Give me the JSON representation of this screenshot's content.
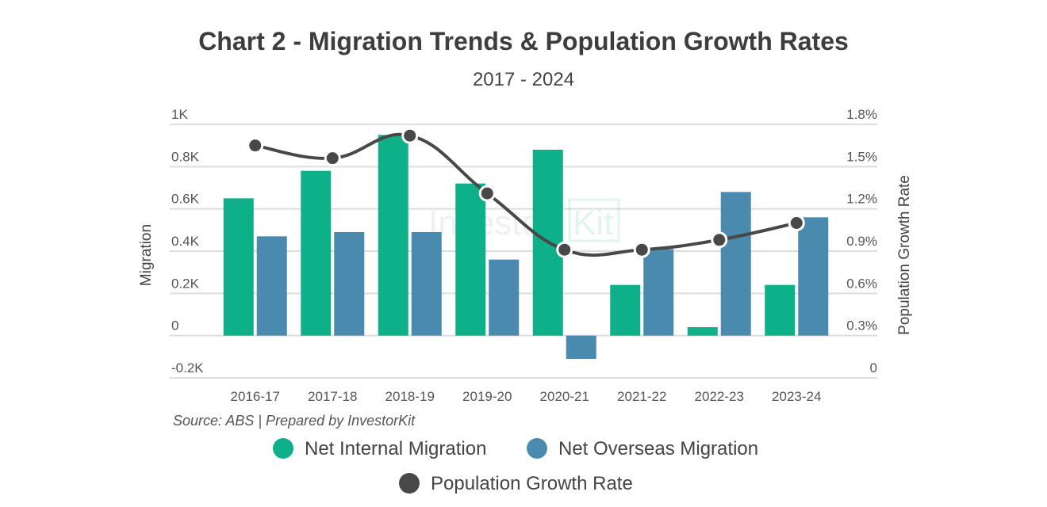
{
  "chart_data": {
    "type": "bar",
    "title": "Chart 2 - Migration Trends & Population Growth Rates",
    "subtitle": "2017 - 2024",
    "categories": [
      "2016-17",
      "2017-18",
      "2018-19",
      "2019-20",
      "2020-21",
      "2021-22",
      "2022-23",
      "2023-24"
    ],
    "series": [
      {
        "name": "Net Internal Migration",
        "type": "bar",
        "axis": "left",
        "color": "#0db088",
        "values": [
          0.65,
          0.78,
          0.95,
          0.72,
          0.88,
          0.24,
          0.04,
          0.24
        ]
      },
      {
        "name": "Net Overseas Migration",
        "type": "bar",
        "axis": "left",
        "color": "#4a8aae",
        "values": [
          0.47,
          0.49,
          0.49,
          0.36,
          -0.11,
          0.41,
          0.68,
          0.56
        ]
      },
      {
        "name": "Population Growth Rate",
        "type": "line",
        "axis": "right",
        "color": "#484848",
        "values": [
          1.65,
          1.56,
          1.72,
          1.31,
          0.91,
          0.91,
          0.98,
          1.1
        ]
      }
    ],
    "ylabel": "Migration",
    "ylabel_right": "Population Growth Rate",
    "ylim": [
      -0.2,
      1.0
    ],
    "ylim_right": [
      0,
      1.8
    ],
    "yticks": [
      {
        "v": 1.0,
        "label": "1K"
      },
      {
        "v": 0.8,
        "label": "0.8K"
      },
      {
        "v": 0.6,
        "label": "0.6K"
      },
      {
        "v": 0.4,
        "label": "0.4K"
      },
      {
        "v": 0.2,
        "label": "0.2K"
      },
      {
        "v": 0,
        "label": "0"
      },
      {
        "v": -0.2,
        "label": "-0.2K"
      }
    ],
    "yticks_right": [
      {
        "v": 1.8,
        "label": "1.8%"
      },
      {
        "v": 1.5,
        "label": "1.5%"
      },
      {
        "v": 1.2,
        "label": "1.2%"
      },
      {
        "v": 0.9,
        "label": "0.9%"
      },
      {
        "v": 0.6,
        "label": "0.6%"
      },
      {
        "v": 0.3,
        "label": "0.3%"
      },
      {
        "v": 0,
        "label": "0"
      }
    ],
    "grid": true,
    "legend_position": "bottom",
    "source": "Source: ABS | Prepared by InvestorKit",
    "watermark": "InvestorKit"
  }
}
